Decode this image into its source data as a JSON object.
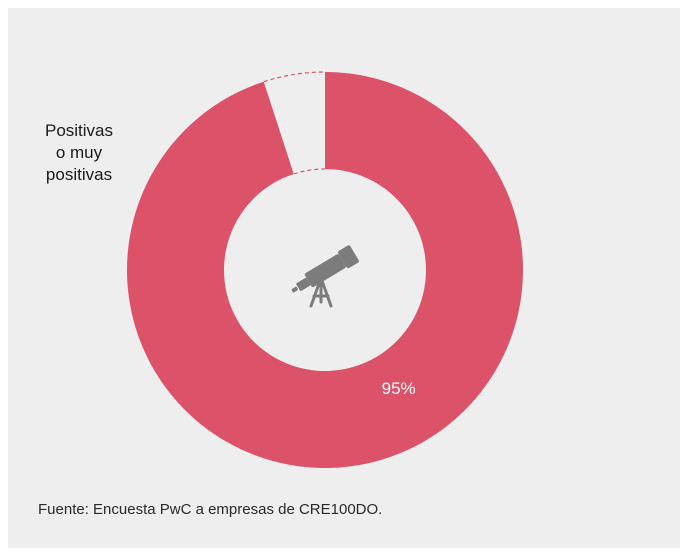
{
  "chart_data": {
    "type": "pie",
    "variant": "donut",
    "slices": [
      {
        "label": "Positivas o muy positivas",
        "value": 95,
        "display": "95%",
        "color": "#dc5369"
      },
      {
        "label": "",
        "value": 5,
        "display": "",
        "color": "#efeeee"
      }
    ],
    "legend": [
      "Positivas",
      "o muy",
      "positivas"
    ],
    "center_icon": "telescope-icon",
    "remainder_style": "dashed-outline",
    "grid": false
  },
  "source": "Fuente: Encuesta PwC a empresas de CRE100DO.",
  "colors": {
    "background": "#efeeee",
    "accent": "#dc5369",
    "icon": "#7d7c7c",
    "value_label": "#ffffff"
  }
}
